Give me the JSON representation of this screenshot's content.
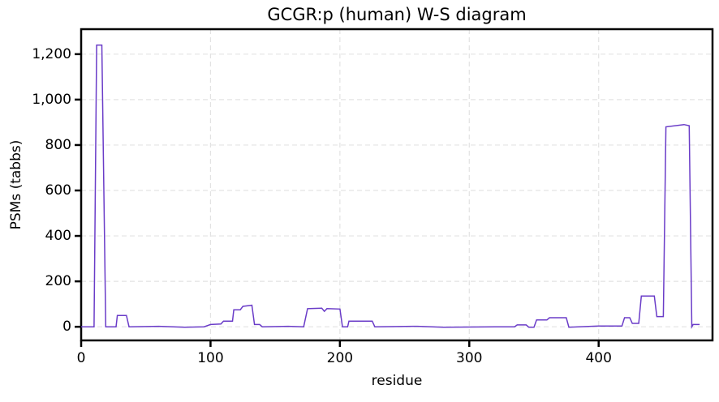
{
  "chart_data": {
    "type": "line",
    "title": "GCGR:p (human) W-S diagram",
    "x_label": "residue",
    "y_label": "PSMs (tabbs)",
    "xlim": [
      0,
      488
    ],
    "ylim": [
      -60,
      1310
    ],
    "xticks": [
      0,
      100,
      200,
      300,
      400
    ],
    "yticks": [
      0,
      200,
      400,
      600,
      800,
      {
        "value": 1000,
        "label": "1,000"
      },
      {
        "value": 1200,
        "label": "1,200"
      }
    ],
    "grid": true,
    "series": [
      {
        "color": "#6a3cc8",
        "x": [
          0,
          10,
          12,
          16,
          19,
          27,
          28,
          35,
          37,
          60,
          80,
          95,
          100,
          108,
          110,
          117,
          118,
          123,
          125,
          132,
          134,
          138,
          140,
          160,
          172,
          175,
          186,
          188,
          190,
          200,
          202,
          206,
          207,
          225,
          227,
          260,
          280,
          320,
          335,
          337,
          344,
          346,
          350,
          352,
          360,
          362,
          375,
          377,
          400,
          418,
          420,
          424,
          426,
          431,
          433,
          443,
          445,
          450,
          452,
          466,
          470,
          472,
          473,
          478
        ],
        "values": [
          0,
          0,
          1240,
          1240,
          0,
          0,
          50,
          50,
          0,
          2,
          -2,
          0,
          10,
          12,
          25,
          25,
          75,
          75,
          90,
          95,
          10,
          10,
          0,
          2,
          0,
          80,
          82,
          68,
          80,
          78,
          0,
          0,
          25,
          25,
          0,
          2,
          -2,
          0,
          0,
          8,
          8,
          -2,
          -2,
          30,
          30,
          40,
          40,
          -2,
          3,
          3,
          40,
          40,
          15,
          15,
          135,
          135,
          45,
          45,
          880,
          890,
          885,
          0,
          10,
          10
        ]
      }
    ]
  }
}
